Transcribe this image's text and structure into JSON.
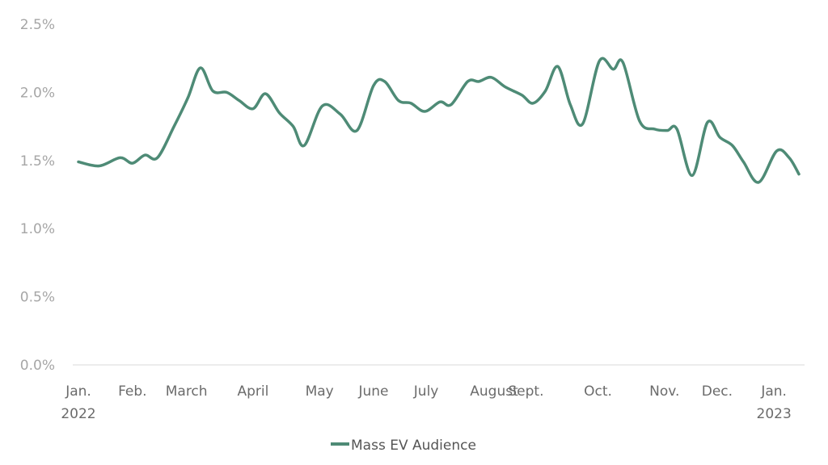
{
  "chart_data": {
    "type": "line",
    "title": "",
    "xlabel": "",
    "ylabel": "",
    "ylim": [
      0,
      2.5
    ],
    "xlim": [
      0,
      52
    ],
    "grid": false,
    "legend_position": "bottom",
    "y_ticks": [
      {
        "value": 0.0,
        "label": "0.0%"
      },
      {
        "value": 0.5,
        "label": "0.5%"
      },
      {
        "value": 1.0,
        "label": "1.0%"
      },
      {
        "value": 1.5,
        "label": "1.5%"
      },
      {
        "value": 2.0,
        "label": "2.0%"
      },
      {
        "value": 2.5,
        "label": "2.5%"
      }
    ],
    "x_ticks": [
      {
        "value": 0,
        "label": "Jan.",
        "sublabel": "2022"
      },
      {
        "value": 3.9,
        "label": "Feb."
      },
      {
        "value": 7.8,
        "label": "March"
      },
      {
        "value": 12.6,
        "label": "April"
      },
      {
        "value": 17.4,
        "label": "May"
      },
      {
        "value": 21.3,
        "label": "June"
      },
      {
        "value": 25.1,
        "label": "July"
      },
      {
        "value": 30.0,
        "label": "August"
      },
      {
        "value": 32.3,
        "label": "Sept."
      },
      {
        "value": 37.5,
        "label": "Oct."
      },
      {
        "value": 42.3,
        "label": "Nov."
      },
      {
        "value": 46.1,
        "label": "Dec."
      },
      {
        "value": 50.2,
        "label": "Jan.",
        "sublabel": "2023"
      }
    ],
    "series": [
      {
        "name": "Mass EV Audience",
        "color": "#4e8b76",
        "x": [
          0,
          1.5,
          3,
          3.9,
          4.8,
          5.7,
          6.9,
          7.9,
          8.8,
          9.7,
          10.7,
          11.6,
          12.6,
          13.5,
          14.5,
          15.5,
          16.3,
          17.6,
          18.9,
          20.1,
          21.3,
          22.1,
          23.1,
          24,
          25,
          26.1,
          26.9,
          28.1,
          28.9,
          29.8,
          30.8,
          32,
          32.8,
          33.7,
          34.6,
          35.5,
          36.4,
          37.6,
          38.6,
          39.3,
          40.5,
          41.6,
          42.5,
          43.2,
          44.3,
          45.4,
          46.3,
          47.2,
          48,
          49.1,
          50.4,
          51.3,
          52
        ],
        "values": [
          1.49,
          1.46,
          1.52,
          1.48,
          1.54,
          1.52,
          1.75,
          1.96,
          2.18,
          2.01,
          2.0,
          1.94,
          1.88,
          1.99,
          1.85,
          1.75,
          1.61,
          1.9,
          1.84,
          1.72,
          2.05,
          2.08,
          1.94,
          1.92,
          1.86,
          1.93,
          1.91,
          2.08,
          2.08,
          2.11,
          2.04,
          1.98,
          1.92,
          2.01,
          2.19,
          1.91,
          1.77,
          2.23,
          2.17,
          2.22,
          1.79,
          1.73,
          1.72,
          1.73,
          1.39,
          1.78,
          1.67,
          1.61,
          1.49,
          1.34,
          1.57,
          1.52,
          1.4
        ]
      }
    ]
  }
}
